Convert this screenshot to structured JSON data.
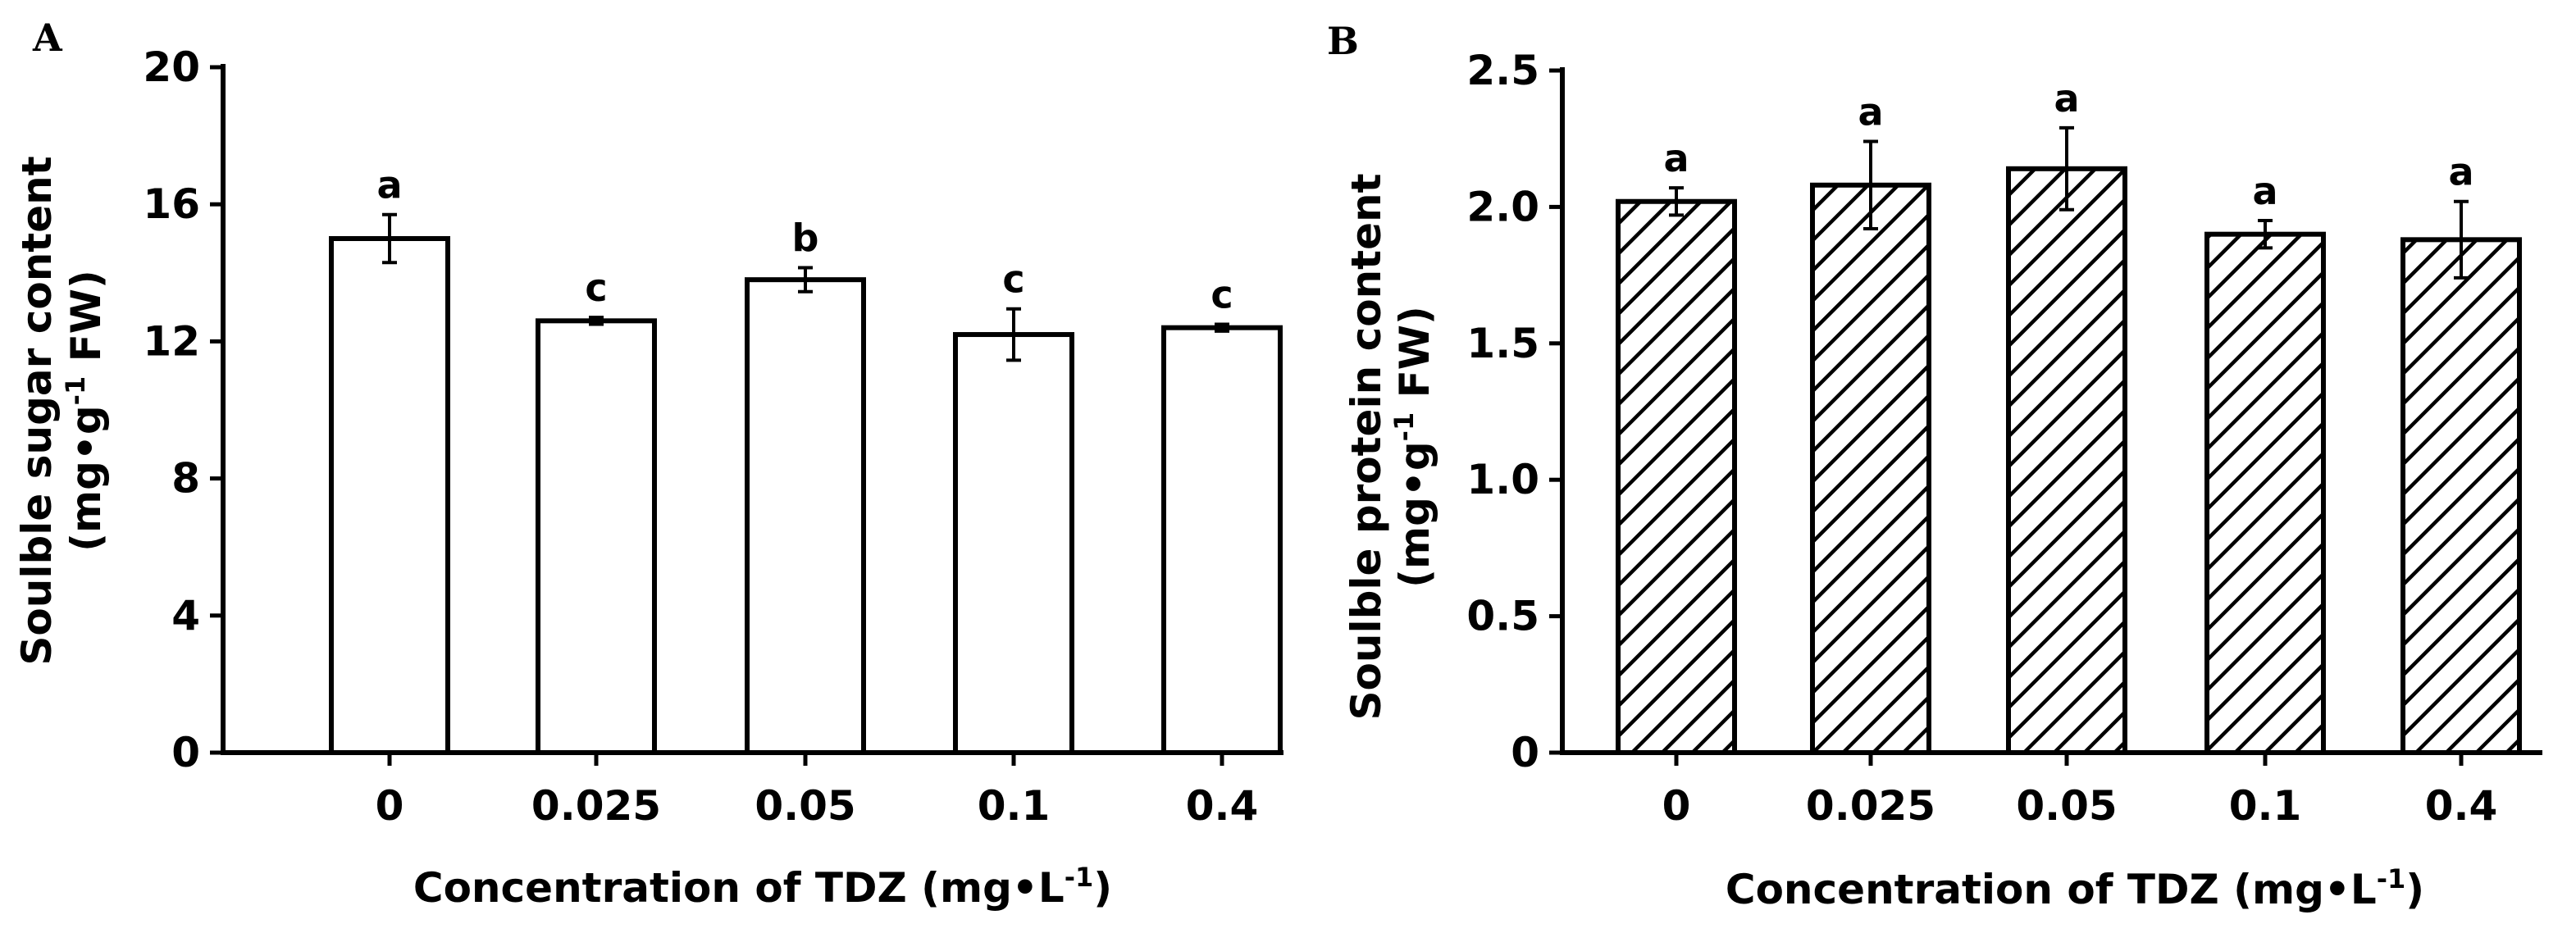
{
  "chart_data": [
    {
      "panel": "A",
      "type": "bar",
      "fill": "solid",
      "fill_color": "#ffffff",
      "categories": [
        "0",
        "0.025",
        "0.05",
        "0.1",
        "0.4"
      ],
      "values": [
        15.0,
        12.6,
        13.8,
        12.2,
        12.4
      ],
      "errors": [
        0.7,
        0.1,
        0.35,
        0.75,
        0.1
      ],
      "significance": [
        "a",
        "c",
        "b",
        "c",
        "c"
      ],
      "ylabel_line1": "Soulble sugar content",
      "ylabel_line2": "(mg•g-1 FW)",
      "xlabel": "Concentration of TDZ (mg•L-1)",
      "ylim": [
        0,
        20
      ],
      "yticks": [
        "0",
        "4",
        "8",
        "12",
        "16",
        "20"
      ]
    },
    {
      "panel": "B",
      "type": "bar",
      "fill": "hatched",
      "fill_color": "#ffffff",
      "categories": [
        "0",
        "0.025",
        "0.05",
        "0.1",
        "0.4"
      ],
      "values": [
        2.02,
        2.08,
        2.14,
        1.9,
        1.88
      ],
      "errors": [
        0.05,
        0.16,
        0.15,
        0.05,
        0.14
      ],
      "significance": [
        "a",
        "a",
        "a",
        "a",
        "a"
      ],
      "ylabel_line1": "Soulble protein content",
      "ylabel_line2": "(mg•g-1 FW)",
      "xlabel": "Concentration of TDZ (mg•L-1)",
      "ylim": [
        0,
        2.5
      ],
      "yticks": [
        "0",
        "0.5",
        "1.0",
        "1.5",
        "2.0",
        "2.5"
      ]
    }
  ]
}
